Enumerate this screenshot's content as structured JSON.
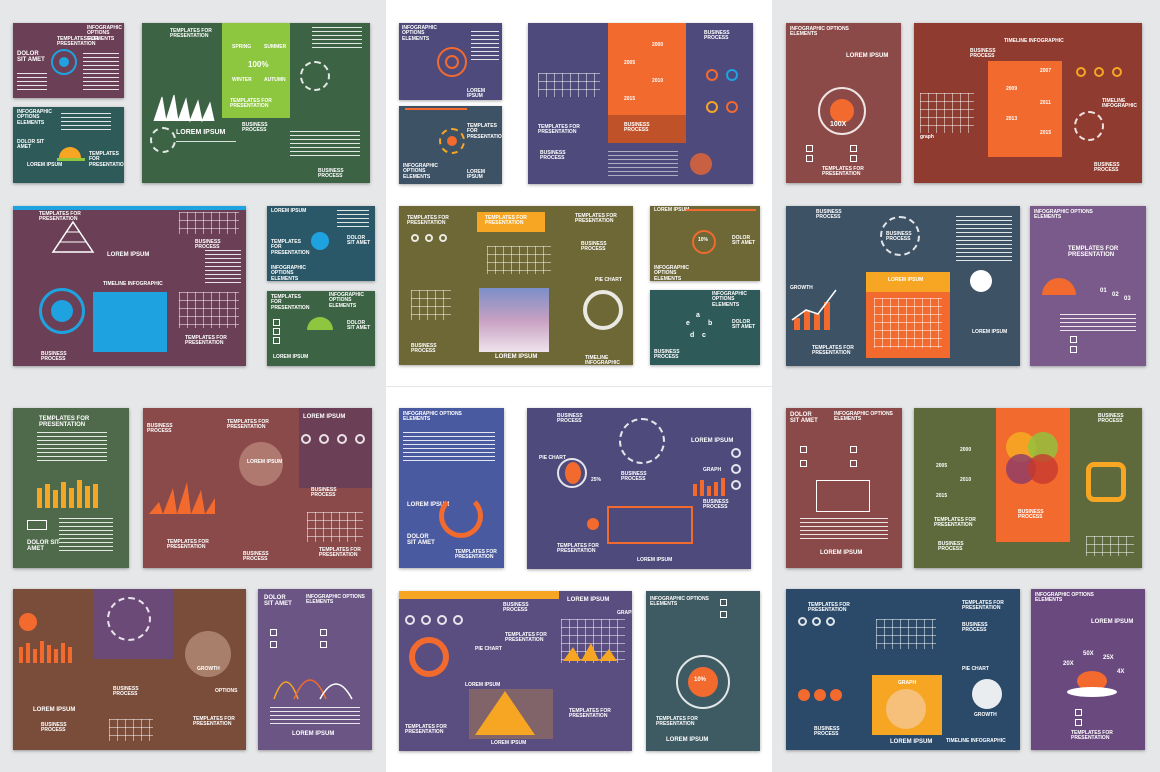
{
  "colors": {
    "background": "#e6e7e8",
    "plum": "#6b3f55",
    "teal": "#2f5a5a",
    "green": "#3d6345",
    "purple": "#4e4a7c",
    "brown": "#7a4d3a",
    "rust": "#8f3b2f",
    "orange": "#f26a2e",
    "yellow": "#f6a623",
    "lime": "#8dc63f",
    "blue": "#1fa3e0",
    "olive": "#6e6736",
    "slate": "#3e5266",
    "mauve": "#7e5a6e"
  },
  "text": {
    "templates_for_presentation": "TEMPLATES FOR PRESENTATION",
    "infographic_options_elements": "INFOGRAPHIC OPTIONS ELEMENTS",
    "dolor_sit_amet": "DOLOR SIT AMET",
    "lorem_ipsum": "LOREM IPSUM",
    "business_process": "BUSINESS PROCESS",
    "timeline_infographic": "TIMELINE INFOGRAPHIC",
    "pie_chart": "PIE CHART",
    "graph": "GRAPH",
    "growth": "GROWTH",
    "options": "OPTIONS",
    "spring": "SPRING",
    "summer": "SUMMER",
    "winter": "WINTER",
    "autumn": "AUTUMN",
    "pct100": "100%",
    "pct100x": "100X",
    "pct10": "10%",
    "pct20": "20%",
    "pct25": "25%",
    "y2007": "2007",
    "y2009": "2009",
    "y2011": "2011",
    "y2013": "2013",
    "y2015": "2015",
    "y2000": "2000",
    "y2005": "2005",
    "y2010": "2010",
    "n01": "01",
    "n02": "02",
    "n03": "03",
    "m20x": "20X",
    "m50x": "50X",
    "m25x": "25X",
    "m4x": "4X",
    "graph_lower": "graph",
    "lettersA": "a",
    "lettersB": "b",
    "lettersC": "c",
    "lettersD": "d",
    "lettersE": "e"
  }
}
